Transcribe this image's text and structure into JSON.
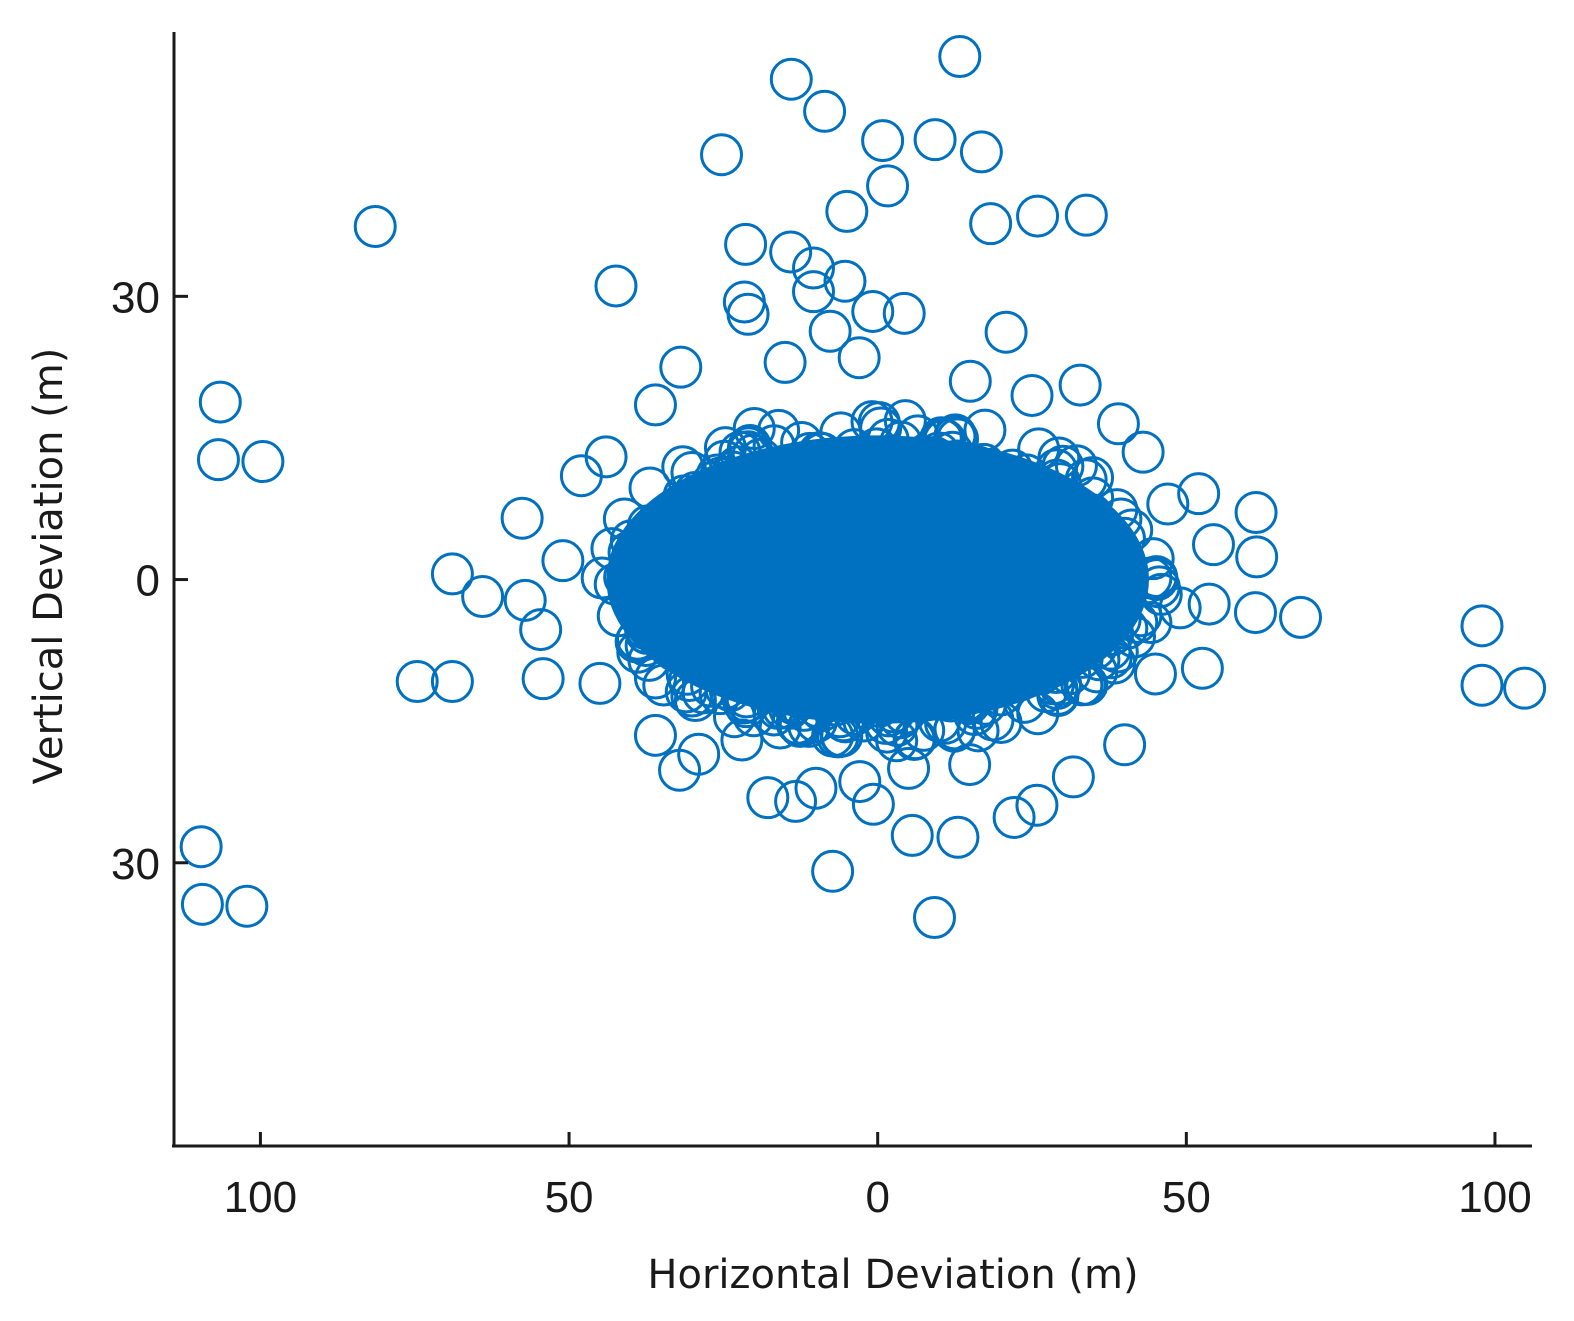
{
  "chart_data": {
    "type": "scatter",
    "title": "",
    "xlabel": "Horizontal Deviation (m)",
    "ylabel": "Vertical Deviation (m)",
    "xlim": [
      -114,
      106
    ],
    "ylim": [
      -60,
      58
    ],
    "xticks": [
      {
        "value": -100,
        "label": "100"
      },
      {
        "value": -50,
        "label": "50"
      },
      {
        "value": 0,
        "label": "0"
      },
      {
        "value": 50,
        "label": "50"
      },
      {
        "value": 100,
        "label": "100"
      }
    ],
    "yticks": [
      {
        "value": 30,
        "label": "30"
      },
      {
        "value": 0,
        "label": "0"
      },
      {
        "value": -30,
        "label": "30"
      }
    ],
    "marker": "open-circle",
    "color": "#0070c0",
    "grid": false,
    "legend": "none",
    "dense_core": {
      "x_center": 0,
      "y_center": 0,
      "x_halfwidth": 42,
      "y_halfwidth": 14
    },
    "points": [
      {
        "x": 13.3,
        "y": 55.4
      },
      {
        "x": -14.0,
        "y": 53.0
      },
      {
        "x": -8.6,
        "y": 49.6
      },
      {
        "x": 0.8,
        "y": 46.5
      },
      {
        "x": 9.3,
        "y": 46.6
      },
      {
        "x": -25.3,
        "y": 45.0
      },
      {
        "x": 16.8,
        "y": 45.3
      },
      {
        "x": 1.6,
        "y": 41.7
      },
      {
        "x": -5.0,
        "y": 39.0
      },
      {
        "x": 25.9,
        "y": 38.5
      },
      {
        "x": 33.8,
        "y": 38.6
      },
      {
        "x": 18.3,
        "y": 37.7
      },
      {
        "x": -81.4,
        "y": 37.4
      },
      {
        "x": -21.4,
        "y": 35.5
      },
      {
        "x": -14.1,
        "y": 34.7
      },
      {
        "x": -10.4,
        "y": 33.0
      },
      {
        "x": -5.3,
        "y": 31.6
      },
      {
        "x": -42.4,
        "y": 31.1
      },
      {
        "x": -21.6,
        "y": 29.4
      },
      {
        "x": -21.0,
        "y": 28.1
      },
      {
        "x": -10.4,
        "y": 30.5
      },
      {
        "x": 4.3,
        "y": 28.2
      },
      {
        "x": -0.8,
        "y": 28.4
      },
      {
        "x": 20.8,
        "y": 26.2
      },
      {
        "x": -7.7,
        "y": 26.3
      },
      {
        "x": -31.9,
        "y": 22.5
      },
      {
        "x": 32.8,
        "y": 20.6
      },
      {
        "x": -106.5,
        "y": 18.8
      },
      {
        "x": -106.8,
        "y": 12.7
      },
      {
        "x": -99.6,
        "y": 12.5
      },
      {
        "x": 61.3,
        "y": 7.1
      },
      {
        "x": 61.4,
        "y": 2.4
      },
      {
        "x": 52.0,
        "y": 9.1
      },
      {
        "x": 54.4,
        "y": 3.7
      },
      {
        "x": -57.6,
        "y": 6.5
      },
      {
        "x": -68.9,
        "y": 0.6
      },
      {
        "x": -64.0,
        "y": -1.8
      },
      {
        "x": -57.1,
        "y": -2.2
      },
      {
        "x": -54.6,
        "y": -5.3
      },
      {
        "x": -54.2,
        "y": -10.5
      },
      {
        "x": -74.6,
        "y": -10.8
      },
      {
        "x": -68.9,
        "y": -10.8
      },
      {
        "x": 68.5,
        "y": -4.0
      },
      {
        "x": 61.2,
        "y": -3.5
      },
      {
        "x": 52.6,
        "y": -9.4
      },
      {
        "x": 53.7,
        "y": -2.6
      },
      {
        "x": 97.9,
        "y": -4.9
      },
      {
        "x": 97.9,
        "y": -11.2
      },
      {
        "x": 104.8,
        "y": -11.5
      },
      {
        "x": -32.1,
        "y": -20.2
      },
      {
        "x": -17.8,
        "y": -23.1
      },
      {
        "x": -13.3,
        "y": -23.5
      },
      {
        "x": -10.0,
        "y": -22.1
      },
      {
        "x": -0.7,
        "y": -23.8
      },
      {
        "x": 22.1,
        "y": -25.2
      },
      {
        "x": 25.8,
        "y": -23.9
      },
      {
        "x": 31.7,
        "y": -20.9
      },
      {
        "x": 5.6,
        "y": -27.1
      },
      {
        "x": 13.0,
        "y": -27.3
      },
      {
        "x": -7.3,
        "y": -30.9
      },
      {
        "x": 9.2,
        "y": -35.8
      },
      {
        "x": -109.6,
        "y": -28.3
      },
      {
        "x": -109.4,
        "y": -34.4
      },
      {
        "x": -102.2,
        "y": -34.6
      },
      {
        "x": -2.9,
        "y": -21.4
      },
      {
        "x": 14.9,
        "y": -19.6
      },
      {
        "x": -45.0,
        "y": -11.0
      },
      {
        "x": 45.0,
        "y": -10.0
      },
      {
        "x": -48.0,
        "y": 11.0
      },
      {
        "x": 47.0,
        "y": 8.0
      },
      {
        "x": -44.0,
        "y": 13.0
      },
      {
        "x": 43.0,
        "y": 13.5
      },
      {
        "x": -36.0,
        "y": -16.5
      },
      {
        "x": 40.0,
        "y": -17.5
      },
      {
        "x": -22.0,
        "y": -17.0
      },
      {
        "x": 5.0,
        "y": -20.0
      },
      {
        "x": 15.0,
        "y": 21.0
      },
      {
        "x": -15.0,
        "y": 23.0
      },
      {
        "x": -3.0,
        "y": 23.5
      },
      {
        "x": 25.0,
        "y": 19.5
      },
      {
        "x": -36.0,
        "y": 18.5
      },
      {
        "x": 39.0,
        "y": 16.5
      },
      {
        "x": -51.0,
        "y": 2.0
      },
      {
        "x": 49.0,
        "y": -3.0
      },
      {
        "x": -29.0,
        "y": -18.5
      },
      {
        "x": 10.0,
        "y": -15.0
      },
      {
        "x": -20.0,
        "y": 16.0
      },
      {
        "x": 30.0,
        "y": 12.0
      }
    ]
  }
}
